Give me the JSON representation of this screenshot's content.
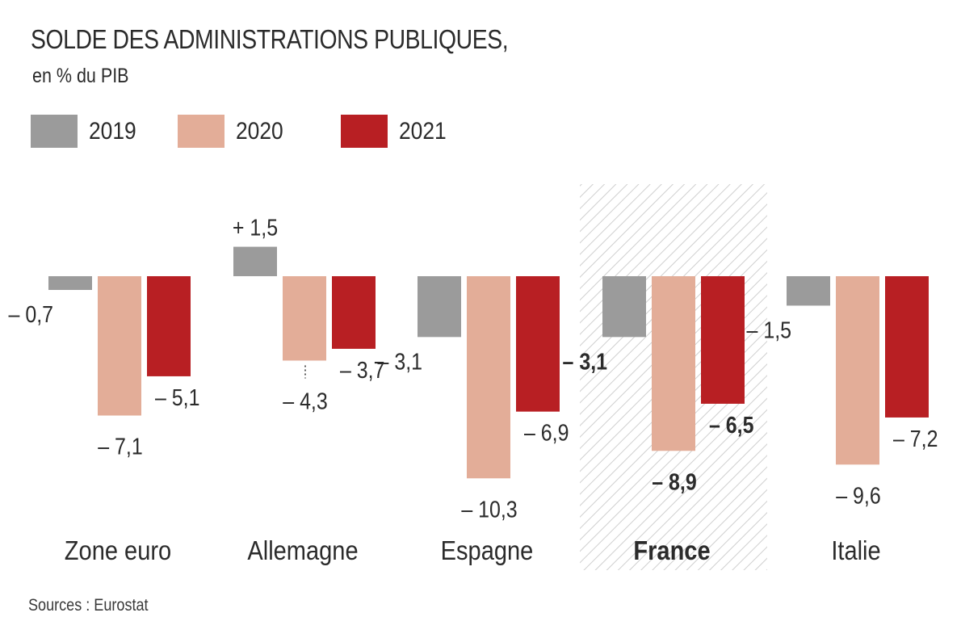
{
  "header": {
    "title": "SOLDE DES ADMINISTRATIONS PUBLIQUES,",
    "subtitle": "en % du PIB"
  },
  "legend": [
    {
      "label": "2019",
      "color": "#9b9b9b"
    },
    {
      "label": "2020",
      "color": "#e3ad98"
    },
    {
      "label": "2021",
      "color": "#b81f23"
    }
  ],
  "footer": {
    "source": "Sources : Eurostat"
  },
  "chart_data": {
    "type": "bar",
    "title": "SOLDE DES ADMINISTRATIONS PUBLIQUES,",
    "subtitle": "en % du PIB",
    "categories": [
      "Zone euro",
      "Allemagne",
      "Espagne",
      "France",
      "Italie"
    ],
    "highlight_category": "France",
    "series": [
      {
        "name": "2019",
        "color": "#9b9b9b",
        "values": [
          -0.7,
          1.5,
          -3.1,
          -3.1,
          -1.5
        ],
        "labels": [
          "– 0,7",
          "+ 1,5",
          "– 3,1",
          "– 3,1",
          "– 1,5"
        ]
      },
      {
        "name": "2020",
        "color": "#e3ad98",
        "values": [
          -7.1,
          -4.3,
          -10.3,
          -8.9,
          -9.6
        ],
        "labels": [
          "– 7,1",
          "– 4,3",
          "– 10,3",
          "– 8,9",
          "– 9,6"
        ]
      },
      {
        "name": "2021",
        "color": "#b81f23",
        "values": [
          -5.1,
          -3.7,
          -6.9,
          -6.5,
          -7.2
        ],
        "labels": [
          "– 5,1",
          "– 3,7",
          "– 6,9",
          "– 6,5",
          "– 7,2"
        ]
      }
    ],
    "legend_position": "top-left",
    "grid": false,
    "source": "Sources : Eurostat"
  }
}
